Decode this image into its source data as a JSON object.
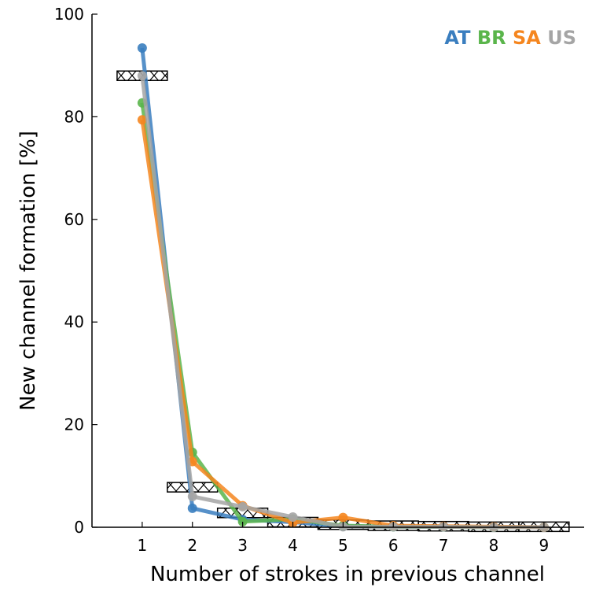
{
  "chart_data": {
    "type": "line",
    "xlabel": "Number of strokes in previous channel",
    "ylabel": "New channel formation [%]",
    "xlim": [
      0,
      9.8
    ],
    "ylim": [
      0,
      100
    ],
    "x_ticks": [
      1,
      2,
      3,
      4,
      5,
      6,
      7,
      8,
      9
    ],
    "y_ticks": [
      0,
      20,
      40,
      60,
      80,
      100
    ],
    "grid": false,
    "legend_position": "top-right",
    "x": [
      1,
      2,
      3,
      4,
      5,
      6,
      7,
      8,
      9
    ],
    "series": [
      {
        "name": "AT",
        "color": "#3a7ebf",
        "values": [
          93.4,
          3.7,
          1.5,
          1.0,
          0.2,
          0.1,
          0.1,
          0.0,
          0.0
        ]
      },
      {
        "name": "BR",
        "color": "#5ab54b",
        "values": [
          82.7,
          14.6,
          1.1,
          1.6,
          0.3,
          0.1,
          0.1,
          0.0,
          0.0
        ]
      },
      {
        "name": "SA",
        "color": "#f5861f",
        "values": [
          79.4,
          12.8,
          4.2,
          0.9,
          1.9,
          0.3,
          0.2,
          0.1,
          0.0
        ]
      },
      {
        "name": "US",
        "color": "#a5a5a5",
        "values": [
          88.0,
          6.0,
          4.0,
          2.0,
          0.1,
          0.1,
          0.1,
          0.0,
          0.0
        ]
      }
    ],
    "model_boxes": {
      "style": "hatched",
      "values": [
        88.0,
        7.8,
        2.8,
        1.0,
        0.5,
        0.3,
        0.2,
        0.1,
        0.1
      ]
    }
  }
}
